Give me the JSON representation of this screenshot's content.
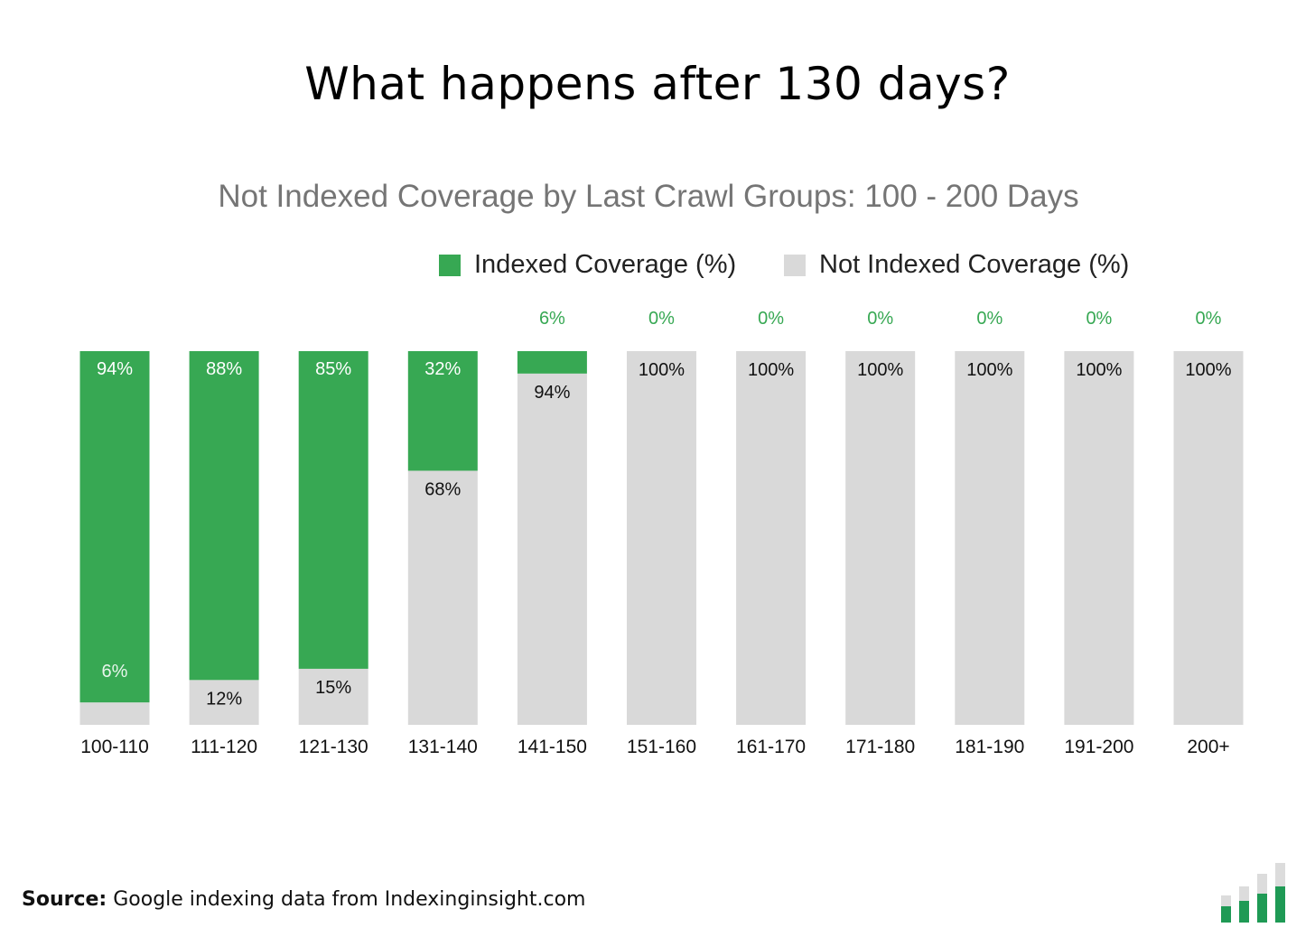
{
  "title": "What happens after 130 days?",
  "source": {
    "label": "Source:",
    "text": "Google indexing data from Indexinginsight.com"
  },
  "colors": {
    "indexed": "#37a853",
    "not_indexed": "#d9d9d9",
    "logo_light": "#dcdcdc",
    "logo_dark": "#1f9a55"
  },
  "logo_icon": "bar-chart-logo-icon",
  "chart_data": {
    "type": "bar",
    "stacked": true,
    "title": "Not Indexed Coverage by Last Crawl Groups: 100 - 200 Days",
    "ylim": [
      0,
      100
    ],
    "grid": false,
    "legend": "top-right",
    "categories": [
      "100-110",
      "111-120",
      "121-130",
      "131-140",
      "141-150",
      "151-160",
      "161-170",
      "171-180",
      "181-190",
      "191-200",
      "200+"
    ],
    "series": [
      {
        "name": "Indexed Coverage (%)",
        "values": [
          94,
          88,
          85,
          32,
          6,
          0,
          0,
          0,
          0,
          0,
          0
        ],
        "labels": [
          "94%",
          "88%",
          "85%",
          "32%",
          "6%",
          "0%",
          "0%",
          "0%",
          "0%",
          "0%",
          "0%"
        ]
      },
      {
        "name": "Not Indexed Coverage (%)",
        "values": [
          6,
          12,
          15,
          68,
          94,
          100,
          100,
          100,
          100,
          100,
          100
        ],
        "labels": [
          "6%",
          "12%",
          "15%",
          "68%",
          "94%",
          "100%",
          "100%",
          "100%",
          "100%",
          "100%",
          "100%"
        ]
      }
    ]
  }
}
